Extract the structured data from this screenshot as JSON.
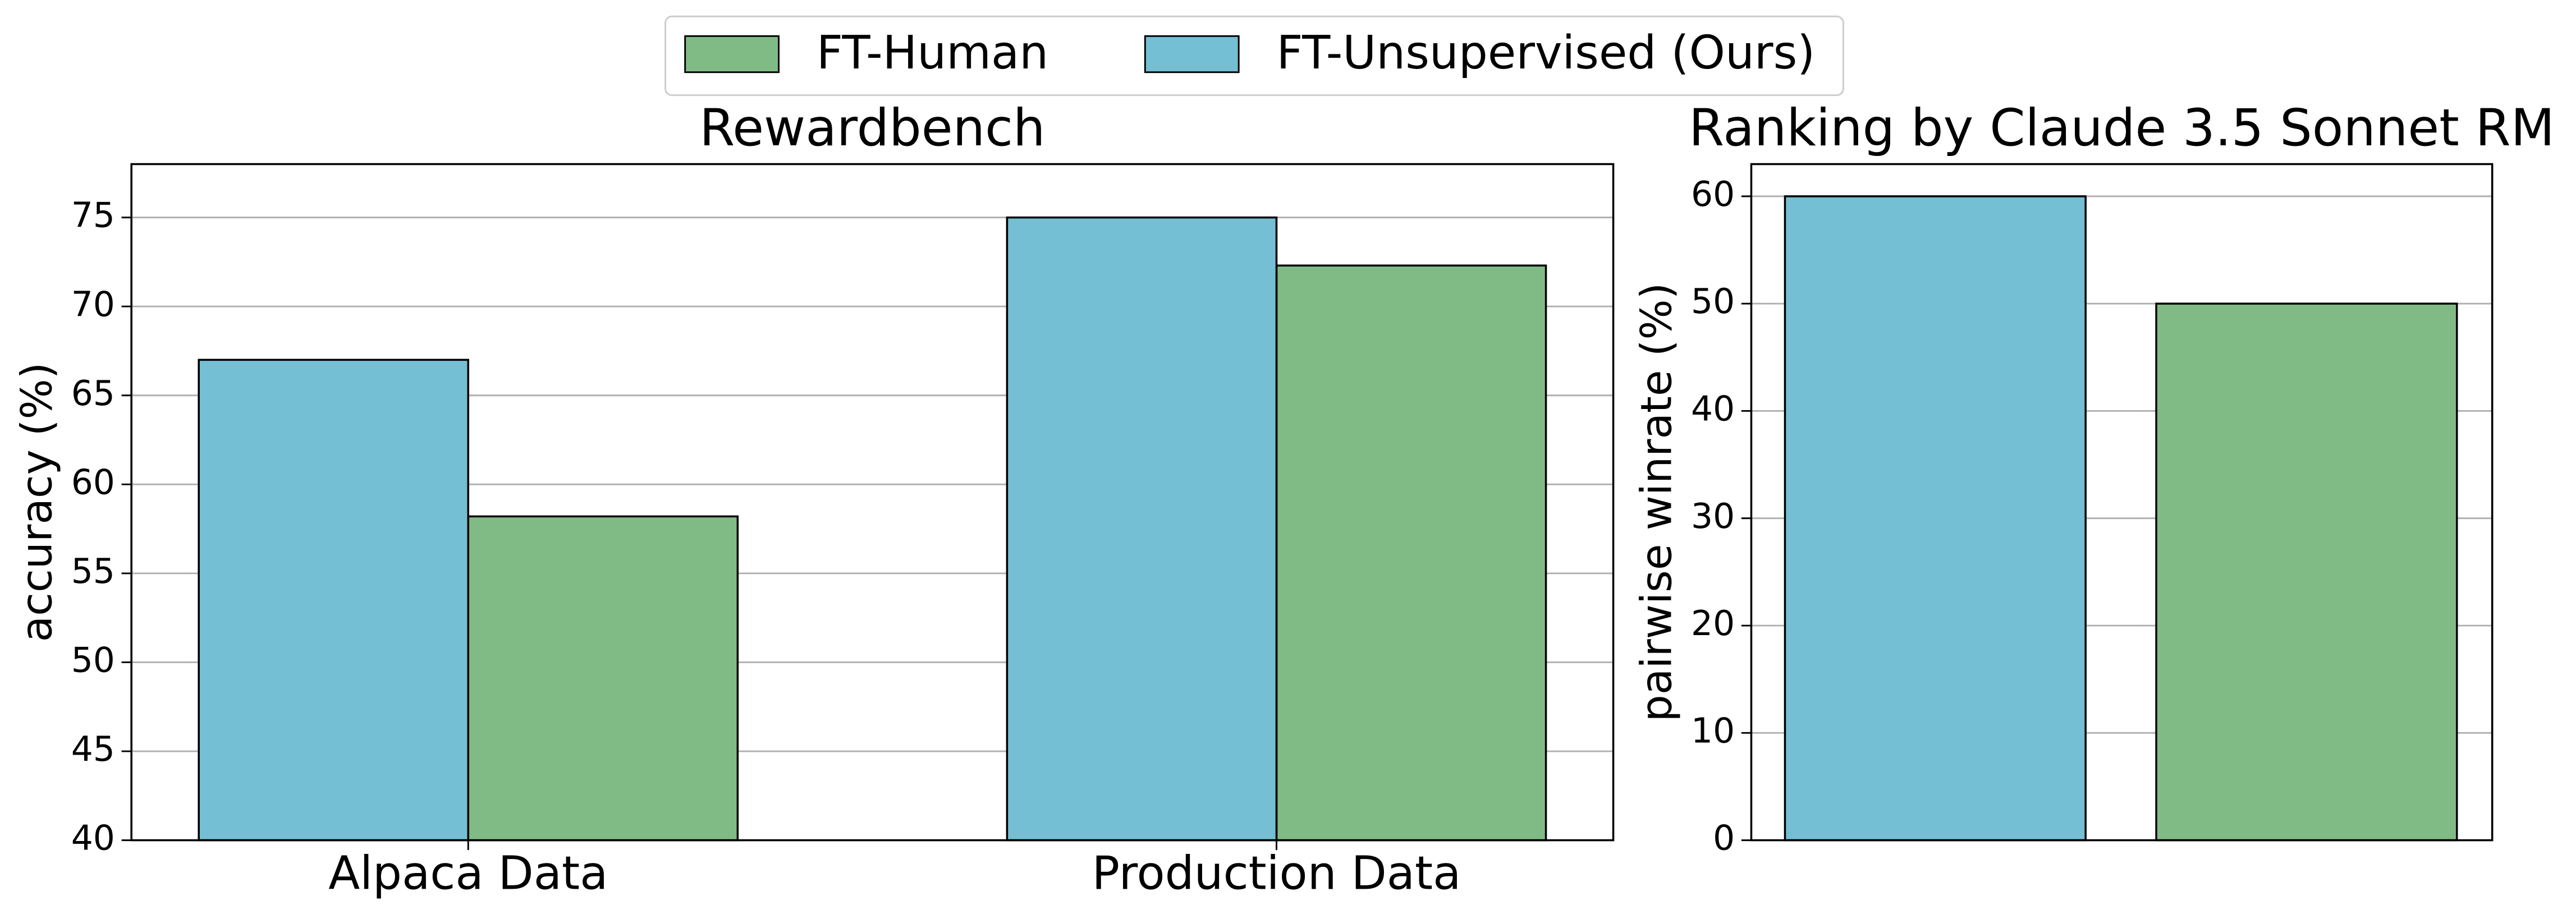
{
  "chart_data": [
    {
      "type": "bar",
      "title": "Rewardbench",
      "y_label": "accuracy (%)",
      "categories": [
        "Alpaca Data",
        "Production Data"
      ],
      "series": [
        {
          "name": "FT-Human",
          "color": "#80bb86",
          "values": [
            58.2,
            72.3
          ]
        },
        {
          "name": "FT-Unsupervised (Ours)",
          "color": "#74bfd4",
          "values": [
            67,
            75
          ]
        }
      ],
      "ylim": [
        40,
        78
      ],
      "yticks": [
        40,
        45,
        50,
        55,
        60,
        65,
        70,
        75
      ],
      "grid": true
    },
    {
      "type": "bar",
      "title": "Ranking by Claude 3.5 Sonnet RM",
      "y_label": "pairwise winrate (%)",
      "series": [
        {
          "name": "FT-Human",
          "color": "#80bb86",
          "values": [
            50
          ]
        },
        {
          "name": "FT-Unsupervised (Ours)",
          "color": "#74bfd4",
          "values": [
            60
          ]
        }
      ],
      "ylim": [
        0,
        63
      ],
      "yticks": [
        0,
        10,
        20,
        30,
        40,
        50,
        60
      ],
      "grid": true
    }
  ]
}
